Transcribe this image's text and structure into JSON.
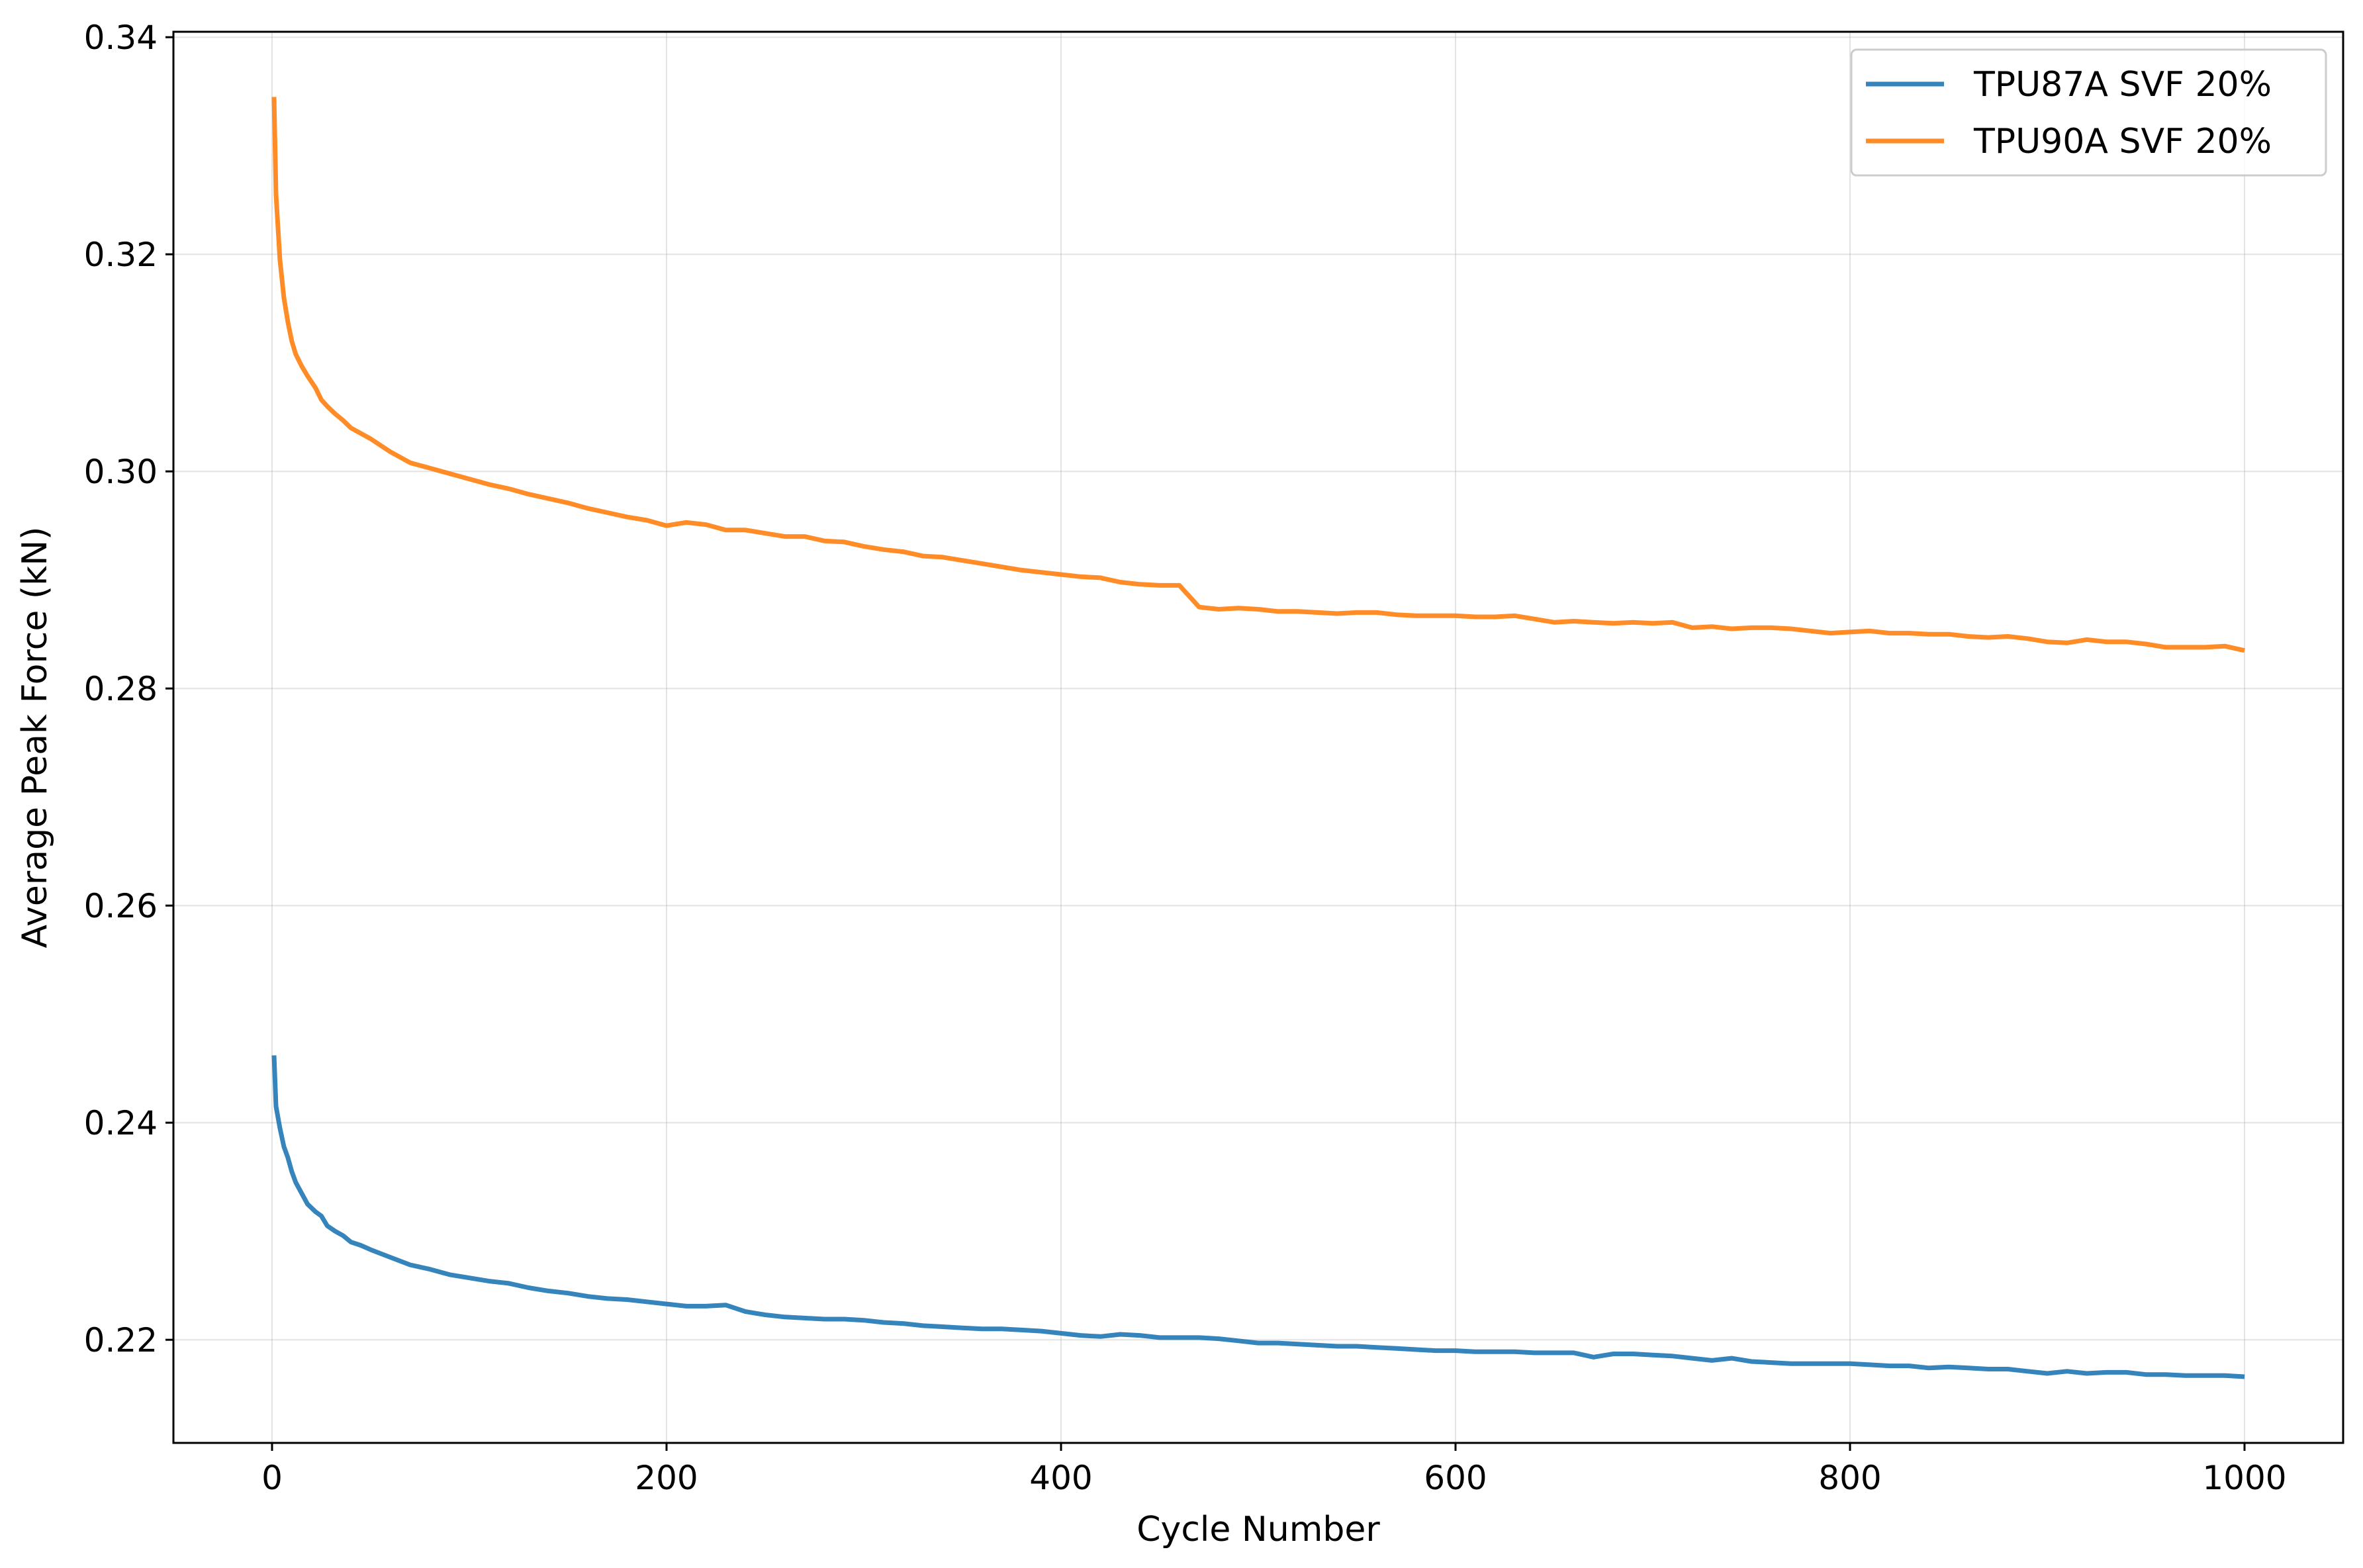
{
  "chart_data": {
    "type": "line",
    "title": "",
    "xlabel": "Cycle Number",
    "ylabel": "Average Peak Force (kN)",
    "xlim": [
      -50,
      1050
    ],
    "ylim": [
      0.2105,
      0.3405
    ],
    "xticks": [
      0,
      200,
      400,
      600,
      800,
      1000
    ],
    "yticks": [
      0.22,
      0.24,
      0.26,
      0.28,
      0.3,
      0.32,
      0.34
    ],
    "xtick_labels": [
      "0",
      "200",
      "400",
      "600",
      "800",
      "1000"
    ],
    "ytick_labels": [
      "0.22",
      "0.24",
      "0.26",
      "0.28",
      "0.30",
      "0.32",
      "0.34"
    ],
    "grid": true,
    "legend_position": "top-right",
    "series": [
      {
        "name": "TPU87A SVF 20%",
        "color": "#1f77b4",
        "x": [
          1,
          2,
          4,
          6,
          8,
          10,
          12,
          15,
          18,
          22,
          25,
          28,
          32,
          36,
          40,
          45,
          50,
          60,
          70,
          80,
          90,
          100,
          110,
          120,
          130,
          140,
          150,
          160,
          170,
          180,
          190,
          200,
          210,
          220,
          230,
          240,
          250,
          260,
          270,
          280,
          290,
          300,
          310,
          320,
          330,
          340,
          350,
          360,
          370,
          380,
          390,
          400,
          410,
          420,
          430,
          440,
          450,
          460,
          470,
          480,
          490,
          500,
          510,
          520,
          530,
          540,
          550,
          560,
          570,
          580,
          590,
          600,
          610,
          620,
          630,
          640,
          650,
          660,
          670,
          680,
          690,
          700,
          710,
          720,
          730,
          740,
          750,
          760,
          770,
          780,
          790,
          800,
          810,
          820,
          830,
          840,
          850,
          860,
          870,
          880,
          890,
          900,
          910,
          920,
          930,
          940,
          950,
          960,
          970,
          980,
          990,
          1000
        ],
        "y": [
          0.2462,
          0.2415,
          0.2395,
          0.2378,
          0.2368,
          0.2355,
          0.2345,
          0.2335,
          0.2325,
          0.2318,
          0.2314,
          0.2305,
          0.23,
          0.2296,
          0.229,
          0.2287,
          0.2283,
          0.2276,
          0.2269,
          0.2265,
          0.226,
          0.2257,
          0.2254,
          0.2252,
          0.2248,
          0.2245,
          0.2243,
          0.224,
          0.2238,
          0.2237,
          0.2235,
          0.2233,
          0.2231,
          0.2231,
          0.2232,
          0.2226,
          0.2223,
          0.2221,
          0.222,
          0.2219,
          0.2219,
          0.2218,
          0.2216,
          0.2215,
          0.2213,
          0.2212,
          0.2211,
          0.221,
          0.221,
          0.2209,
          0.2208,
          0.2206,
          0.2204,
          0.2203,
          0.2205,
          0.2204,
          0.2202,
          0.2202,
          0.2202,
          0.2201,
          0.2199,
          0.2197,
          0.2197,
          0.2196,
          0.2195,
          0.2194,
          0.2194,
          0.2193,
          0.2192,
          0.2191,
          0.219,
          0.219,
          0.2189,
          0.2189,
          0.2189,
          0.2188,
          0.2188,
          0.2188,
          0.2184,
          0.2187,
          0.2187,
          0.2186,
          0.2185,
          0.2183,
          0.2181,
          0.2183,
          0.218,
          0.2179,
          0.2178,
          0.2178,
          0.2178,
          0.2178,
          0.2177,
          0.2176,
          0.2176,
          0.2174,
          0.2175,
          0.2174,
          0.2173,
          0.2173,
          0.2171,
          0.2169,
          0.2171,
          0.2169,
          0.217,
          0.217,
          0.2168,
          0.2168,
          0.2167,
          0.2167,
          0.2167,
          0.2166
        ]
      },
      {
        "name": "TPU90A SVF 20%",
        "color": "#ff7f0e",
        "x": [
          1,
          2,
          4,
          6,
          8,
          10,
          12,
          15,
          18,
          22,
          25,
          28,
          32,
          36,
          40,
          45,
          50,
          60,
          70,
          80,
          90,
          100,
          110,
          120,
          130,
          140,
          150,
          160,
          170,
          180,
          190,
          200,
          210,
          220,
          230,
          240,
          250,
          260,
          270,
          280,
          290,
          300,
          310,
          320,
          330,
          340,
          350,
          360,
          370,
          380,
          390,
          400,
          410,
          420,
          430,
          440,
          450,
          460,
          470,
          480,
          490,
          500,
          510,
          520,
          530,
          540,
          550,
          560,
          570,
          580,
          590,
          600,
          610,
          620,
          630,
          640,
          650,
          660,
          670,
          680,
          690,
          700,
          710,
          720,
          730,
          740,
          750,
          760,
          770,
          780,
          790,
          800,
          810,
          820,
          830,
          840,
          850,
          860,
          870,
          880,
          890,
          900,
          910,
          920,
          930,
          940,
          950,
          960,
          970,
          980,
          990,
          1000
        ],
        "y": [
          0.3345,
          0.3255,
          0.3195,
          0.316,
          0.3138,
          0.312,
          0.3108,
          0.3097,
          0.3088,
          0.3077,
          0.3066,
          0.306,
          0.3053,
          0.3047,
          0.304,
          0.3035,
          0.303,
          0.3018,
          0.3008,
          0.3003,
          0.2998,
          0.2993,
          0.2988,
          0.2984,
          0.2979,
          0.2975,
          0.2971,
          0.2966,
          0.2962,
          0.2958,
          0.2955,
          0.295,
          0.2953,
          0.2951,
          0.2946,
          0.2946,
          0.2943,
          0.294,
          0.294,
          0.2936,
          0.2935,
          0.2931,
          0.2928,
          0.2926,
          0.2922,
          0.2921,
          0.2918,
          0.2915,
          0.2912,
          0.2909,
          0.2907,
          0.2905,
          0.2903,
          0.2902,
          0.2898,
          0.2896,
          0.2895,
          0.2895,
          0.2875,
          0.2873,
          0.2874,
          0.2873,
          0.2871,
          0.2871,
          0.287,
          0.2869,
          0.287,
          0.287,
          0.2868,
          0.2867,
          0.2867,
          0.2867,
          0.2866,
          0.2866,
          0.2867,
          0.2864,
          0.2861,
          0.2862,
          0.2861,
          0.286,
          0.2861,
          0.286,
          0.2861,
          0.2856,
          0.2857,
          0.2855,
          0.2856,
          0.2856,
          0.2855,
          0.2853,
          0.2851,
          0.2852,
          0.2853,
          0.2851,
          0.2851,
          0.285,
          0.285,
          0.2848,
          0.2847,
          0.2848,
          0.2846,
          0.2843,
          0.2842,
          0.2845,
          0.2843,
          0.2843,
          0.2841,
          0.2838,
          0.2838,
          0.2838,
          0.2839,
          0.2835
        ]
      }
    ]
  }
}
